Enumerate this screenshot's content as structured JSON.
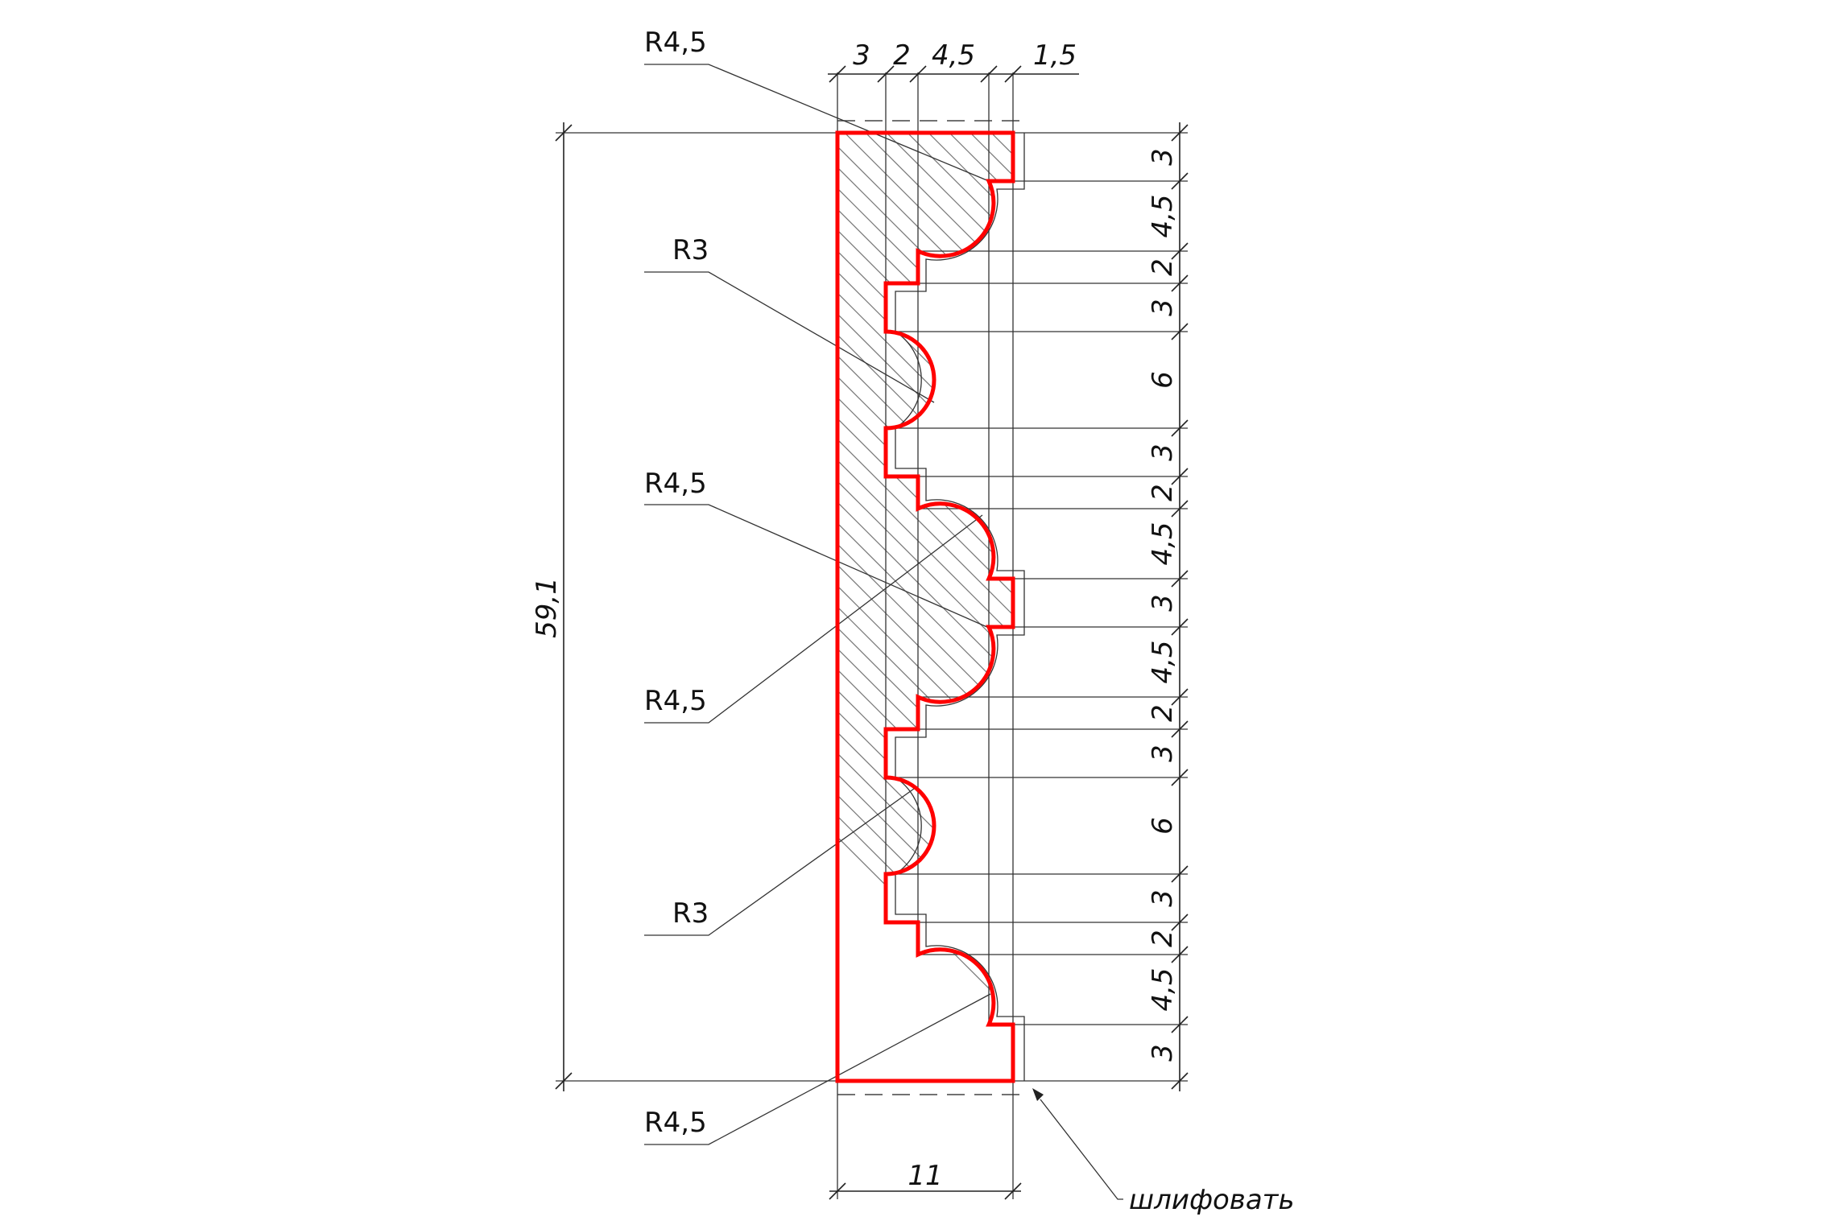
{
  "drawing": {
    "profile_color": "#ff0000",
    "line_color": "#222222",
    "overall_height_label": "59,1",
    "overall_width_label": "11",
    "top_dimensions": [
      "3",
      "2",
      "4,5",
      "1,5"
    ],
    "right_dimensions": [
      "3",
      "4,5",
      "2",
      "3",
      "6",
      "3",
      "2",
      "4,5",
      "3",
      "4,5",
      "2",
      "3",
      "6",
      "3",
      "2",
      "4,5",
      "3"
    ],
    "radius_labels": {
      "r1": "R4,5",
      "r2": "R3",
      "r3": "R4,5",
      "r4": "R4,5",
      "r5": "R3",
      "r6": "R4,5"
    },
    "note": "шлифовать"
  }
}
